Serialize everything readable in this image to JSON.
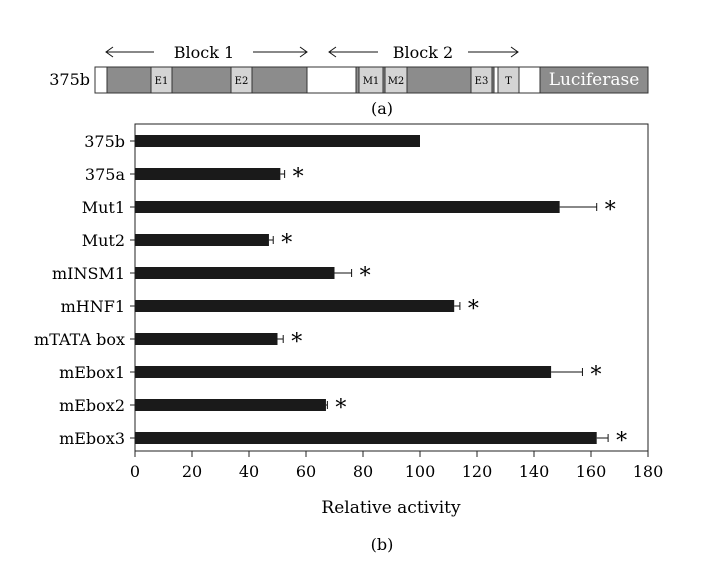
{
  "panel_a": {
    "construct_label": "375b",
    "block1_label": "Block 1",
    "block2_label": "Block 2",
    "elements": [
      "E1",
      "E2",
      "M1",
      "M2",
      "E3",
      "T"
    ],
    "reporter_label": "Luciferase",
    "caption": "(a)",
    "colors": {
      "block": "#8c8c8c",
      "element": "#d4d4d4",
      "reporter": "#8c8c8c"
    }
  },
  "panel_b": {
    "caption": "(b)"
  },
  "chart_data": {
    "type": "bar",
    "orientation": "horizontal",
    "categories": [
      "375b",
      "375a",
      "Mut1",
      "Mut2",
      "mINSM1",
      "mHNF1",
      "mTATA box",
      "mEbox1",
      "mEbox2",
      "mEbox3"
    ],
    "values": [
      100,
      51,
      149,
      47,
      70,
      112,
      50,
      146,
      67,
      162
    ],
    "errors": [
      0,
      1.5,
      13,
      1.5,
      6,
      2,
      2,
      11,
      0.5,
      4
    ],
    "significance": [
      "",
      "*",
      "*",
      "*",
      "*",
      "*",
      "*",
      "*",
      "*",
      "*"
    ],
    "xlabel": "Relative activity",
    "ylabel": "",
    "xlim": [
      0,
      180
    ],
    "xticks": [
      0,
      20,
      40,
      60,
      80,
      100,
      120,
      140,
      160,
      180
    ],
    "bar_color": "#1a1a1a",
    "grid": false
  }
}
